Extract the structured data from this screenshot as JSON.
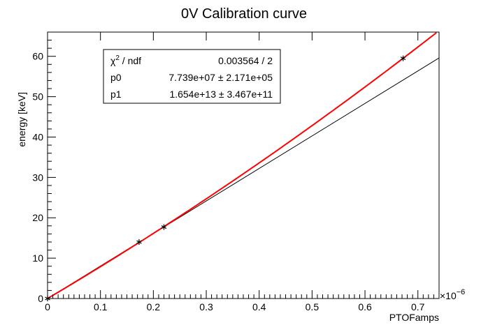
{
  "chart_data": {
    "type": "scatter",
    "title": "0V Calibration curve",
    "xlabel": "PTOFamps",
    "ylabel": "energy [keV]",
    "x_exponent": "×10",
    "x_exponent_power": "−6",
    "xlim": [
      0,
      0.74
    ],
    "ylim": [
      0,
      66
    ],
    "x_ticks": [
      "0",
      "0.1",
      "0.2",
      "0.3",
      "0.4",
      "0.5",
      "0.6",
      "0.7"
    ],
    "x_tick_values": [
      0,
      0.1,
      0.2,
      0.3,
      0.4,
      0.5,
      0.6,
      0.7
    ],
    "y_ticks": [
      "0",
      "10",
      "20",
      "30",
      "40",
      "50",
      "60"
    ],
    "y_tick_values": [
      0,
      10,
      20,
      30,
      40,
      50,
      60
    ],
    "points": [
      {
        "x": 0,
        "y": 0
      },
      {
        "x": 0.173,
        "y": 14.0
      },
      {
        "x": 0.22,
        "y": 17.7
      },
      {
        "x": 0.672,
        "y": 59.5
      }
    ],
    "fit_curve": {
      "color": "#ff0000",
      "p0_times_1e6": 77.39,
      "p1_times_1e12": 16.54,
      "x_range": [
        0,
        0.735
      ]
    },
    "linear_reference": {
      "color": "#000000",
      "x": [
        0,
        0.74
      ],
      "y": [
        0,
        59.6
      ]
    },
    "stats_box": {
      "chi2_label": "χ",
      "chi2_sup": "2",
      "chi2_suffix": " / ndf",
      "chi2_value": "0.003564 / 2",
      "p0_label": "p0",
      "p0_value": "7.739e+07 ± 2.171e+05",
      "p1_label": "p1",
      "p1_value": "1.654e+13 ± 3.467e+11"
    }
  }
}
